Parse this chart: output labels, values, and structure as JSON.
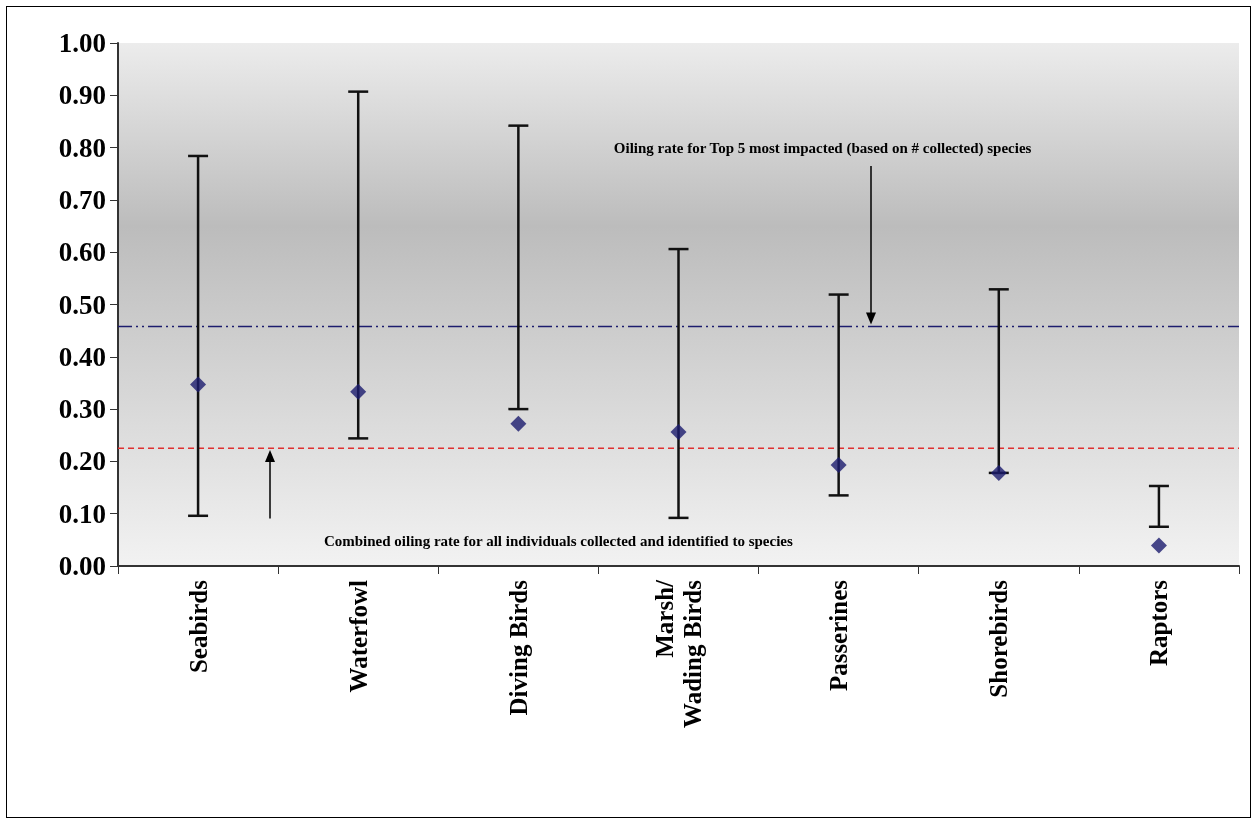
{
  "chart_data": {
    "type": "scatter",
    "categories": [
      "Seabirds",
      "Waterfowl",
      "Diving Birds",
      "Marsh/Wading Birds",
      "Passerines",
      "Shorebirds",
      "Raptors"
    ],
    "series": [
      {
        "color": "#1c1c6e",
        "values": [
          0.347,
          0.333,
          0.272,
          0.256,
          0.193,
          0.178,
          0.039
        ],
        "errors": [
          [
            0.096,
            0.784
          ],
          [
            0.244,
            0.907
          ],
          [
            0.3,
            0.842
          ],
          [
            0.092,
            0.606
          ],
          [
            0.135,
            0.519
          ],
          [
            0.178,
            0.529
          ],
          [
            0.075,
            0.153
          ]
        ]
      }
    ],
    "ylim": [
      0,
      1
    ],
    "yticks": [
      {
        "value": 0,
        "label": "0.00"
      },
      {
        "value": 0.1,
        "label": "0.10"
      },
      {
        "value": 0.2,
        "label": "0.20"
      },
      {
        "value": 0.3,
        "label": "0.30"
      },
      {
        "value": 0.4,
        "label": "0.40"
      },
      {
        "value": 0.5,
        "label": "0.50"
      },
      {
        "value": 0.6,
        "label": "0.60"
      },
      {
        "value": 0.7,
        "label": "0.70"
      },
      {
        "value": 0.8,
        "label": "0.80"
      },
      {
        "value": 0.9,
        "label": "0.90"
      },
      {
        "value": 1,
        "label": "1.00"
      }
    ],
    "ref_lines": [
      {
        "axis": "y",
        "value": 0.458,
        "color": "#1c1c6e",
        "line_style": "dashdot"
      },
      {
        "axis": "y",
        "value": 0.225,
        "color": "#e03030",
        "line_style": "dashed"
      }
    ],
    "annotations": [
      "Oiling rate for Top 5 most impacted (based on # collected) species",
      "Combined oiling rate for all individuals collected and identified to species"
    ],
    "marker": "diamond",
    "grid": false
  }
}
